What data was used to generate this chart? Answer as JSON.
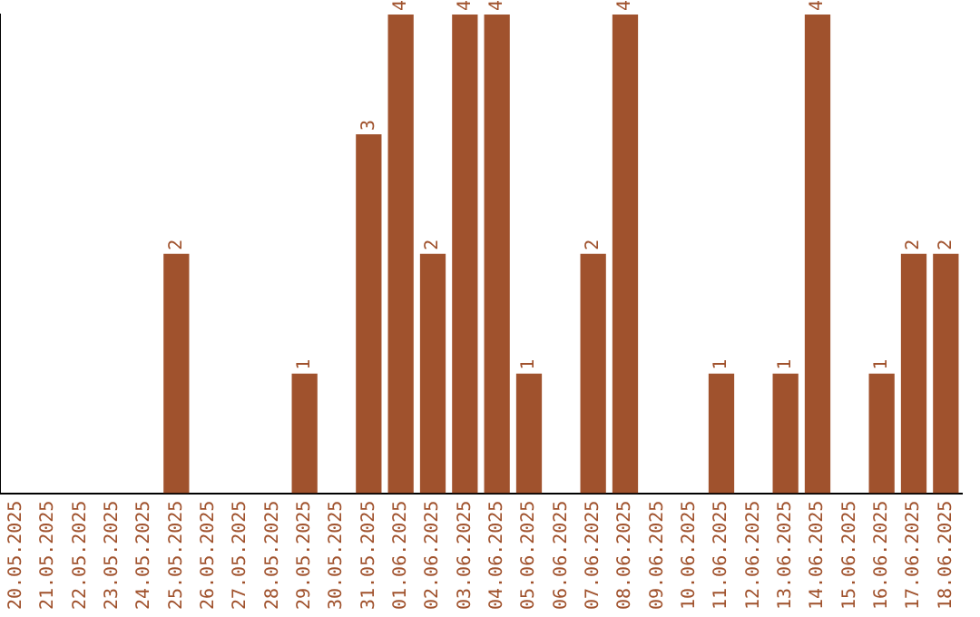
{
  "chart_data": {
    "type": "bar",
    "categories": [
      "20.05.2025",
      "21.05.2025",
      "22.05.2025",
      "23.05.2025",
      "24.05.2025",
      "25.05.2025",
      "26.05.2025",
      "27.05.2025",
      "28.05.2025",
      "29.05.2025",
      "30.05.2025",
      "31.05.2025",
      "01.06.2025",
      "02.06.2025",
      "03.06.2025",
      "04.06.2025",
      "05.06.2025",
      "06.06.2025",
      "07.06.2025",
      "08.06.2025",
      "09.06.2025",
      "10.06.2025",
      "11.06.2025",
      "12.06.2025",
      "13.06.2025",
      "14.06.2025",
      "15.06.2025",
      "16.06.2025",
      "17.06.2025",
      "18.06.2025"
    ],
    "values": [
      0,
      0,
      0,
      0,
      0,
      2,
      0,
      0,
      0,
      1,
      0,
      3,
      4,
      2,
      4,
      4,
      1,
      0,
      2,
      4,
      0,
      0,
      1,
      0,
      1,
      4,
      0,
      1,
      2,
      2
    ],
    "value_labels": [
      null,
      null,
      null,
      null,
      null,
      "2",
      null,
      null,
      null,
      "1",
      null,
      "3",
      "4",
      "2",
      "4",
      "4",
      "1",
      null,
      "2",
      "4",
      null,
      null,
      "1",
      null,
      "1",
      "4",
      null,
      "1",
      "2",
      "2"
    ],
    "color": "#a0522d",
    "grid": false,
    "legend": false,
    "tick_labels": "x"
  }
}
